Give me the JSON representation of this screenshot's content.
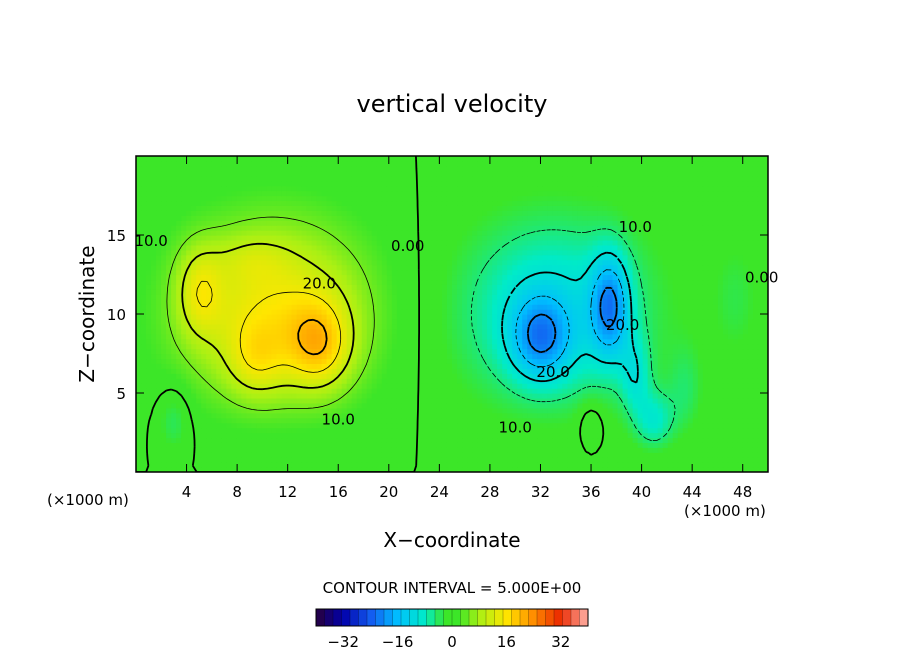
{
  "chart_data": {
    "type": "heatmap",
    "title": "vertical velocity",
    "xlabel": "X−coordinate",
    "ylabel": "Z−coordinate",
    "x_unit_left": "(×1000 m)",
    "x_unit_right": "(×1000 m)",
    "xlim": [
      0,
      50
    ],
    "ylim": [
      0,
      20
    ],
    "x_ticks": [
      4,
      8,
      12,
      16,
      20,
      24,
      28,
      32,
      36,
      40,
      44,
      48
    ],
    "y_ticks": [
      5,
      10,
      15
    ],
    "contour_interval_text": "CONTOUR INTERVAL = 5.000E+00",
    "contour_interval": 5,
    "contour_labels": [
      {
        "text": "10.0",
        "x": 1.2,
        "y": 14.3
      },
      {
        "text": "20.0",
        "x": 14.5,
        "y": 11.6
      },
      {
        "text": "10.0",
        "x": 16.0,
        "y": 3.0
      },
      {
        "text": "0.00",
        "x": 21.5,
        "y": 14.0
      },
      {
        "text": "10.0",
        "x": 39.5,
        "y": 15.2
      },
      {
        "text": "20.0",
        "x": 38.5,
        "y": 9.0
      },
      {
        "text": "20.0",
        "x": 33.0,
        "y": 6.0
      },
      {
        "text": "10.0",
        "x": 30.0,
        "y": 2.5
      },
      {
        "text": "0.00",
        "x": 49.5,
        "y": 12.0
      }
    ],
    "field_features": [
      {
        "kind": "updraft",
        "x": 14.5,
        "y": 8.0,
        "peak": 30
      },
      {
        "kind": "updraft",
        "x": 5.0,
        "y": 11.5,
        "peak": 24
      },
      {
        "kind": "updraft",
        "x": 9.5,
        "y": 7.0,
        "peak": 22
      },
      {
        "kind": "downdraft",
        "x": 32.0,
        "y": 8.5,
        "peak": -28
      },
      {
        "kind": "downdraft",
        "x": 37.5,
        "y": 10.5,
        "peak": -30
      },
      {
        "kind": "downdraft",
        "x": 41.0,
        "y": 3.0,
        "peak": -12
      }
    ],
    "colorbar": {
      "vmin": -40,
      "vmax": 40,
      "step": 2.5,
      "tick_values": [
        -32,
        -16,
        0,
        16,
        32
      ],
      "tick_labels": [
        "−32",
        "−16",
        "0",
        "16",
        "32"
      ]
    }
  }
}
